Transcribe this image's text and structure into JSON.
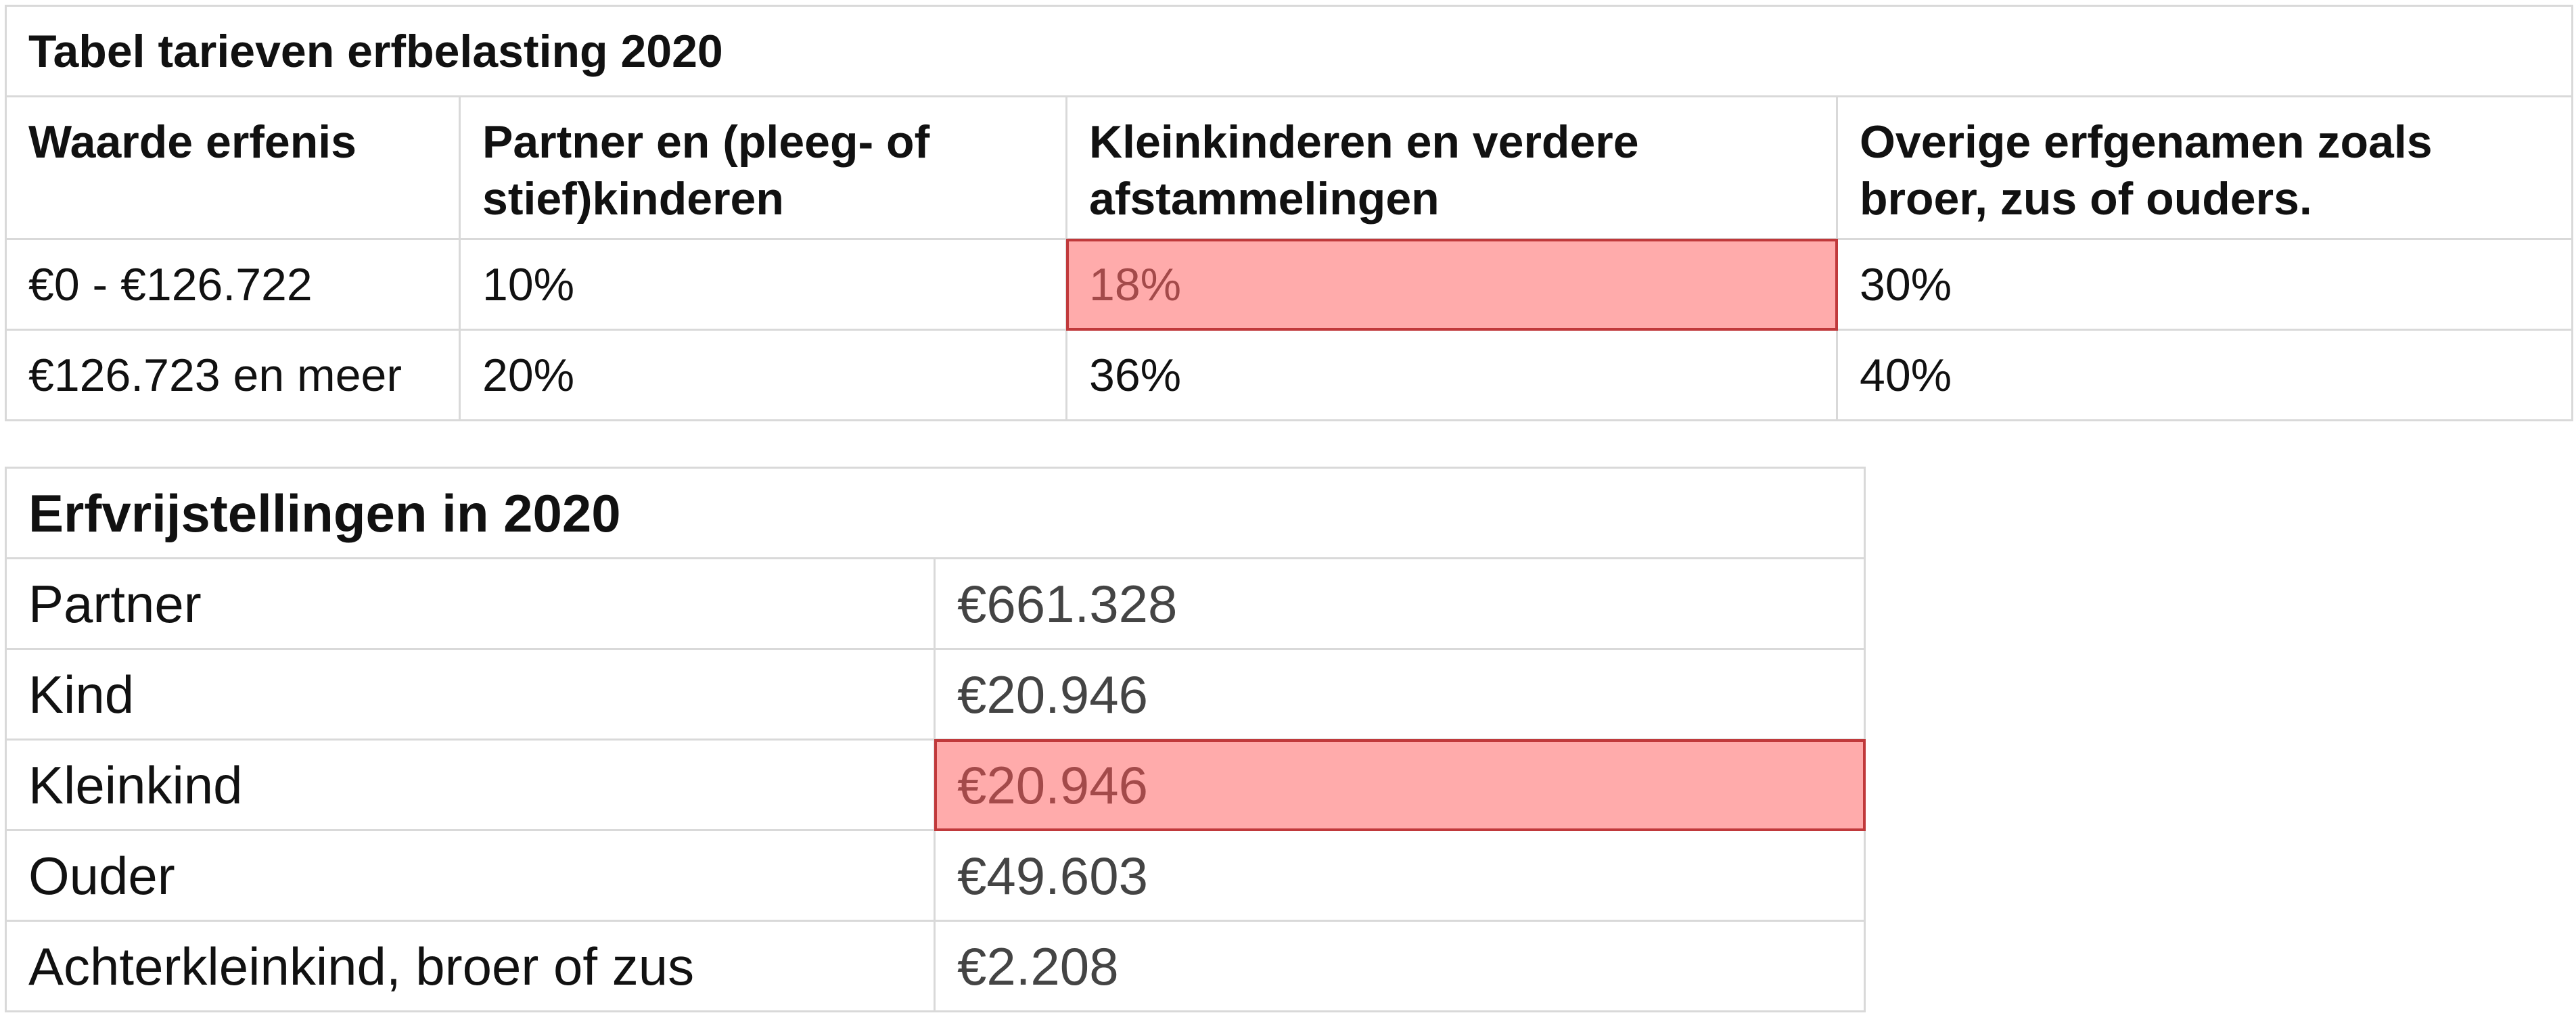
{
  "table1": {
    "title": "Tabel tarieven erfbelasting 2020",
    "header": [
      "Waarde erfenis",
      "Partner en (pleeg- of stief)kinderen",
      "Kleinkinderen en verdere afstammelingen",
      "Overige erfgenamen zoals broer, zus of ouders."
    ],
    "rows": [
      [
        "€0 - €126.722",
        "10%",
        "18%",
        "30%"
      ],
      [
        "€126.723 en meer",
        "20%",
        "36%",
        "40%"
      ]
    ]
  },
  "table2": {
    "title": "Erfvrijstellingen in 2020",
    "rows": [
      [
        "Partner",
        "€661.328"
      ],
      [
        "Kind",
        "€20.946"
      ],
      [
        "Kleinkind",
        "€20.946"
      ],
      [
        "Ouder",
        "€49.603"
      ],
      [
        "Achterkleinkind, broer of zus",
        "€2.208"
      ]
    ]
  }
}
